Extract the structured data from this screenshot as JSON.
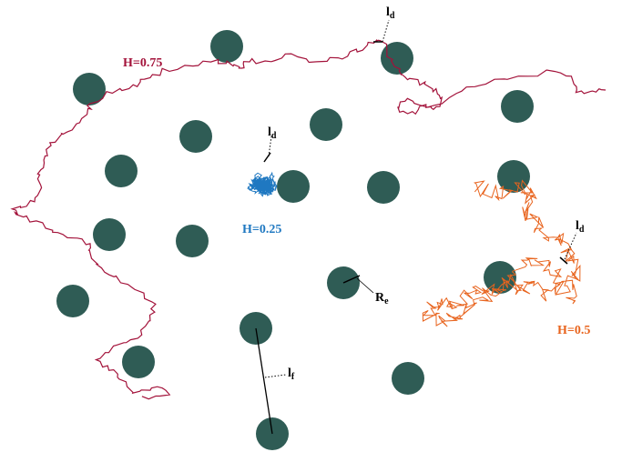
{
  "colors": {
    "background": "#ffffff",
    "obstacle": "#2f5c55",
    "path_h075": "#a3123a",
    "path_h025": "#1f78c1",
    "path_h05": "#e8641e",
    "annotation": "#000000"
  },
  "labels": {
    "h075": "H=0.75",
    "h025": "H=0.25",
    "h05": "H=0.5",
    "ld_main": "l",
    "ld_sub": "d",
    "lf_main": "l",
    "lf_sub": "f",
    "re_main": "R",
    "re_sub": "e"
  }
}
